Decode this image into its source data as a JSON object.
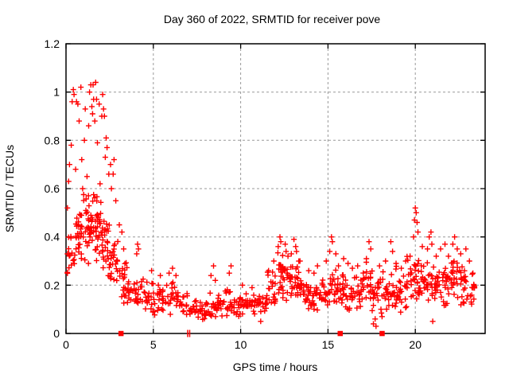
{
  "chart_data": {
    "type": "scatter",
    "title": "Day 360 of 2022, SRMTID for receiver pove",
    "xlabel": "GPS time / hours",
    "ylabel": "SRMTID / TECUs",
    "xlim": [
      0,
      24
    ],
    "ylim": [
      0,
      1.2
    ],
    "x_ticks": [
      {
        "v": 0,
        "label": "0"
      },
      {
        "v": 5,
        "label": "5"
      },
      {
        "v": 10,
        "label": "10"
      },
      {
        "v": 15,
        "label": "15"
      },
      {
        "v": 20,
        "label": "20"
      }
    ],
    "y_ticks": [
      {
        "v": 0,
        "label": "0"
      },
      {
        "v": 0.2,
        "label": "0.2"
      },
      {
        "v": 0.4,
        "label": "0.4"
      },
      {
        "v": 0.6,
        "label": "0.6"
      },
      {
        "v": 0.8,
        "label": "0.8"
      },
      {
        "v": 1,
        "label": "1"
      },
      {
        "v": 1.2,
        "label": "1.2"
      }
    ],
    "grid": "dashed",
    "legend": "none",
    "marker": "plus",
    "marker_color": "#ff0000",
    "grid_color": "#999999",
    "border_color": "#000000",
    "series_name": "SRMTID",
    "bands": [
      [
        0.0,
        0.5,
        0.33,
        0.11,
        16
      ],
      [
        0.5,
        1.0,
        0.4,
        0.14,
        30
      ],
      [
        1.0,
        1.5,
        0.46,
        0.16,
        32
      ],
      [
        1.5,
        2.0,
        0.45,
        0.16,
        32
      ],
      [
        2.0,
        2.5,
        0.38,
        0.14,
        30
      ],
      [
        2.5,
        3.0,
        0.28,
        0.1,
        24
      ],
      [
        3.0,
        3.5,
        0.21,
        0.08,
        20
      ],
      [
        3.5,
        4.0,
        0.17,
        0.06,
        16
      ],
      [
        4.0,
        4.5,
        0.17,
        0.07,
        16
      ],
      [
        4.5,
        5.0,
        0.15,
        0.06,
        16
      ],
      [
        5.0,
        5.5,
        0.14,
        0.06,
        16
      ],
      [
        5.5,
        6.0,
        0.14,
        0.06,
        16
      ],
      [
        6.0,
        6.5,
        0.15,
        0.06,
        16
      ],
      [
        6.5,
        7.0,
        0.12,
        0.05,
        16
      ],
      [
        7.0,
        7.5,
        0.1,
        0.04,
        16
      ],
      [
        7.5,
        8.0,
        0.09,
        0.04,
        16
      ],
      [
        8.0,
        8.5,
        0.12,
        0.06,
        16
      ],
      [
        8.5,
        9.0,
        0.11,
        0.05,
        16
      ],
      [
        9.0,
        9.5,
        0.12,
        0.06,
        16
      ],
      [
        9.5,
        10.0,
        0.11,
        0.05,
        16
      ],
      [
        10.0,
        10.5,
        0.12,
        0.05,
        16
      ],
      [
        10.5,
        11.0,
        0.11,
        0.05,
        16
      ],
      [
        11.0,
        11.5,
        0.12,
        0.06,
        16
      ],
      [
        11.5,
        12.0,
        0.18,
        0.08,
        20
      ],
      [
        12.0,
        12.5,
        0.24,
        0.1,
        24
      ],
      [
        12.5,
        13.0,
        0.22,
        0.09,
        22
      ],
      [
        13.0,
        13.5,
        0.21,
        0.09,
        22
      ],
      [
        13.5,
        14.0,
        0.16,
        0.06,
        18
      ],
      [
        14.0,
        14.5,
        0.16,
        0.07,
        18
      ],
      [
        14.5,
        15.0,
        0.17,
        0.07,
        18
      ],
      [
        15.0,
        15.5,
        0.21,
        0.09,
        20
      ],
      [
        15.5,
        16.0,
        0.18,
        0.08,
        20
      ],
      [
        16.0,
        16.5,
        0.17,
        0.07,
        18
      ],
      [
        16.5,
        17.0,
        0.17,
        0.07,
        18
      ],
      [
        17.0,
        17.5,
        0.2,
        0.09,
        20
      ],
      [
        17.5,
        18.0,
        0.16,
        0.09,
        18
      ],
      [
        18.0,
        18.5,
        0.17,
        0.08,
        18
      ],
      [
        18.5,
        19.0,
        0.19,
        0.09,
        18
      ],
      [
        19.0,
        19.5,
        0.17,
        0.08,
        18
      ],
      [
        19.5,
        20.0,
        0.23,
        0.1,
        20
      ],
      [
        20.0,
        20.5,
        0.24,
        0.1,
        22
      ],
      [
        20.5,
        21.0,
        0.21,
        0.09,
        20
      ],
      [
        21.0,
        21.5,
        0.2,
        0.09,
        20
      ],
      [
        21.5,
        22.0,
        0.21,
        0.09,
        20
      ],
      [
        22.0,
        22.5,
        0.22,
        0.09,
        20
      ],
      [
        22.5,
        23.0,
        0.21,
        0.09,
        20
      ],
      [
        23.0,
        23.4,
        0.18,
        0.08,
        14
      ]
    ],
    "outliers": [
      [
        0.08,
        0.52
      ],
      [
        0.15,
        0.63
      ],
      [
        0.2,
        0.7
      ],
      [
        0.3,
        0.78
      ],
      [
        0.35,
        0.96
      ],
      [
        0.42,
        1.01
      ],
      [
        0.46,
        0.99
      ],
      [
        0.55,
        0.68
      ],
      [
        0.6,
        0.96
      ],
      [
        0.68,
        0.95
      ],
      [
        0.75,
        0.88
      ],
      [
        0.85,
        1.02
      ],
      [
        0.9,
        0.72
      ],
      [
        0.95,
        0.6
      ],
      [
        1.05,
        0.8
      ],
      [
        1.1,
        0.93
      ],
      [
        1.2,
        0.65
      ],
      [
        1.3,
        0.86
      ],
      [
        1.35,
        1.0
      ],
      [
        1.42,
        1.03
      ],
      [
        1.48,
        0.94
      ],
      [
        1.52,
        0.91
      ],
      [
        1.55,
        1.03
      ],
      [
        1.58,
        0.97
      ],
      [
        1.65,
        0.88
      ],
      [
        1.7,
        1.04
      ],
      [
        1.75,
        0.97
      ],
      [
        1.8,
        0.79
      ],
      [
        1.9,
        0.95
      ],
      [
        1.95,
        0.62
      ],
      [
        2.05,
        0.9
      ],
      [
        2.1,
        0.99
      ],
      [
        2.15,
        0.93
      ],
      [
        2.2,
        0.9
      ],
      [
        2.25,
        0.73
      ],
      [
        2.3,
        0.81
      ],
      [
        2.35,
        0.77
      ],
      [
        2.45,
        0.66
      ],
      [
        2.55,
        0.7
      ],
      [
        2.6,
        0.6
      ],
      [
        2.7,
        0.66
      ],
      [
        2.75,
        0.72
      ],
      [
        2.85,
        0.55
      ],
      [
        3.05,
        0.45
      ],
      [
        3.2,
        0.42
      ],
      [
        3.3,
        0.35
      ],
      [
        4.05,
        0.33
      ],
      [
        4.1,
        0.37
      ],
      [
        4.15,
        0.35
      ],
      [
        4.9,
        0.26
      ],
      [
        5.4,
        0.24
      ],
      [
        5.9,
        0.25
      ],
      [
        6.1,
        0.27
      ],
      [
        6.3,
        0.24
      ],
      [
        8.3,
        0.24
      ],
      [
        8.45,
        0.28
      ],
      [
        8.55,
        0.22
      ],
      [
        9.35,
        0.25
      ],
      [
        9.45,
        0.28
      ],
      [
        10.1,
        0.2
      ],
      [
        10.65,
        0.19
      ],
      [
        11.15,
        0.05
      ],
      [
        11.6,
        0.26
      ],
      [
        11.9,
        0.3
      ],
      [
        12.15,
        0.36
      ],
      [
        12.25,
        0.4
      ],
      [
        12.3,
        0.38
      ],
      [
        12.55,
        0.37
      ],
      [
        12.6,
        0.34
      ],
      [
        12.9,
        0.33
      ],
      [
        13.05,
        0.39
      ],
      [
        13.15,
        0.36
      ],
      [
        13.2,
        0.34
      ],
      [
        13.4,
        0.3
      ],
      [
        13.9,
        0.26
      ],
      [
        14.2,
        0.25
      ],
      [
        14.4,
        0.28
      ],
      [
        14.9,
        0.3
      ],
      [
        15.1,
        0.34
      ],
      [
        15.2,
        0.4
      ],
      [
        15.25,
        0.38
      ],
      [
        15.45,
        0.33
      ],
      [
        15.6,
        0.28
      ],
      [
        15.9,
        0.31
      ],
      [
        16.15,
        0.29
      ],
      [
        16.4,
        0.27
      ],
      [
        16.7,
        0.28
      ],
      [
        17.2,
        0.31
      ],
      [
        17.35,
        0.38
      ],
      [
        17.45,
        0.35
      ],
      [
        17.6,
        0.04
      ],
      [
        17.7,
        0.06
      ],
      [
        17.75,
        0.03
      ],
      [
        17.95,
        0.28
      ],
      [
        18.1,
        0.07
      ],
      [
        18.3,
        0.3
      ],
      [
        18.6,
        0.38
      ],
      [
        18.7,
        0.34
      ],
      [
        18.9,
        0.29
      ],
      [
        19.2,
        0.27
      ],
      [
        19.45,
        0.3
      ],
      [
        19.7,
        0.32
      ],
      [
        19.9,
        0.4
      ],
      [
        19.95,
        0.47
      ],
      [
        20.0,
        0.52
      ],
      [
        20.05,
        0.5
      ],
      [
        20.1,
        0.46
      ],
      [
        20.15,
        0.42
      ],
      [
        20.4,
        0.36
      ],
      [
        20.7,
        0.35
      ],
      [
        20.8,
        0.4
      ],
      [
        20.9,
        0.42
      ],
      [
        20.95,
        0.37
      ],
      [
        21.0,
        0.05
      ],
      [
        21.2,
        0.32
      ],
      [
        21.45,
        0.35
      ],
      [
        21.7,
        0.37
      ],
      [
        21.9,
        0.32
      ],
      [
        22.15,
        0.37
      ],
      [
        22.25,
        0.4
      ],
      [
        22.4,
        0.35
      ],
      [
        22.6,
        0.33
      ],
      [
        22.9,
        0.35
      ],
      [
        23.1,
        0.3
      ],
      [
        23.3,
        0.25
      ]
    ],
    "axis_markers": {
      "squares_t": [
        3.15,
        15.7,
        18.1
      ],
      "double_bars_t": [
        6.97,
        7.08
      ]
    },
    "seed": 1234567
  }
}
